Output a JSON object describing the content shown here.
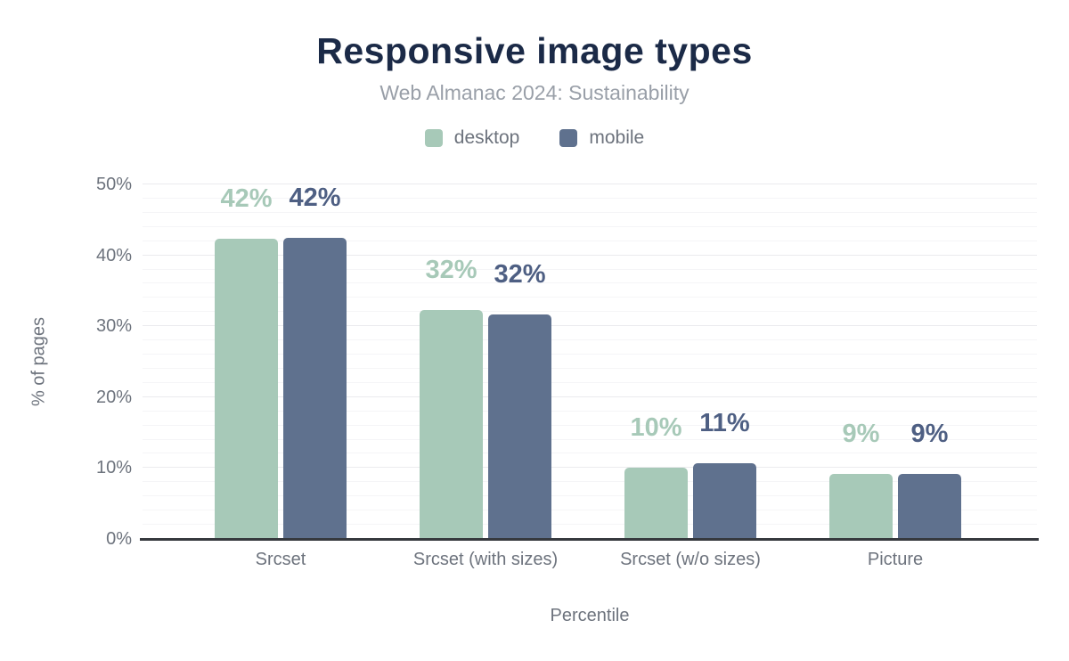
{
  "title": "Responsive image types",
  "subtitle": "Web Almanac 2024: Sustainability",
  "colors": {
    "title": "#1b2a47",
    "subtitle": "#999fa8",
    "axis_text": "#6d737d",
    "axis_line": "#36393e",
    "desktop": "#a7c9b8",
    "mobile": "#5f718e",
    "mobile_label": "#4e5f83",
    "grid_major": "#ebebee",
    "grid_minor": "#f5f5f7"
  },
  "chart_data": {
    "type": "bar",
    "title": "Responsive image types",
    "subtitle": "Web Almanac 2024: Sustainability",
    "categories": [
      "Srcset",
      "Srcset (with sizes)",
      "Srcset (w/o sizes)",
      "Picture"
    ],
    "series": [
      {
        "name": "desktop",
        "color": "#a7c9b8",
        "label_color": "#a7c9b8",
        "values": [
          42.4,
          32.3,
          10.0,
          9.2
        ],
        "labels": [
          "42%",
          "32%",
          "10%",
          "9%"
        ]
      },
      {
        "name": "mobile",
        "color": "#5f718e",
        "label_color": "#4e5f83",
        "values": [
          42.5,
          31.7,
          10.7,
          9.2
        ],
        "labels": [
          "42%",
          "32%",
          "11%",
          "9%"
        ]
      }
    ],
    "xlabel": "Percentile",
    "ylabel": "% of pages",
    "ylim": [
      0,
      50
    ],
    "yticks": [
      "0%",
      "10%",
      "20%",
      "30%",
      "40%",
      "50%"
    ],
    "grid": "horizontal; minor lines every 2%, major lines every 10%",
    "legend_position": "top center"
  }
}
